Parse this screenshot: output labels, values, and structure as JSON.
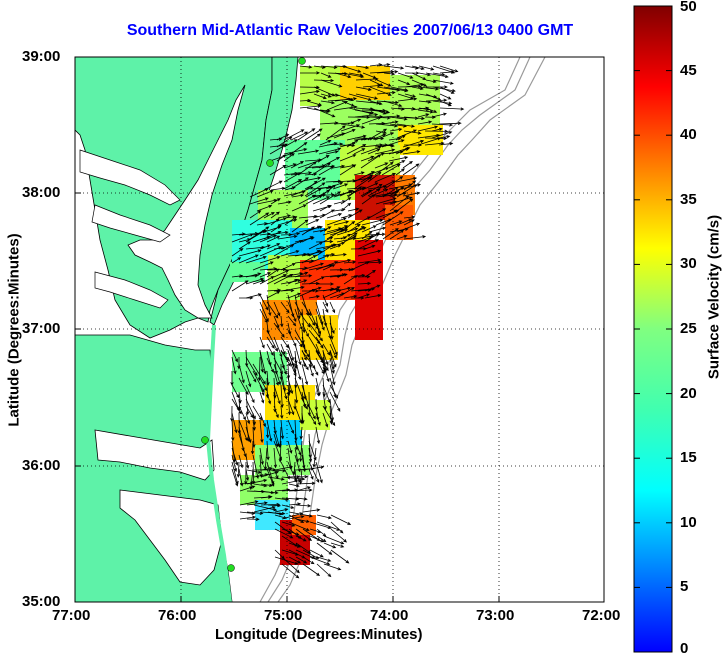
{
  "title": "Southern Mid-Atlantic Raw Velocities 2007/06/13 0400 GMT",
  "xlabel": "Longitude (Degrees:Minutes)",
  "ylabel": "Latitude (Degrees:Minutes)",
  "colorbar": {
    "label": "Surface Velocity (cm/s)",
    "min": 0,
    "max": 50,
    "ticks": [
      "0",
      "5",
      "10",
      "15",
      "20",
      "25",
      "30",
      "35",
      "40",
      "45",
      "50"
    ]
  },
  "x_ticks": [
    "77:00",
    "76:00",
    "75:00",
    "74:00",
    "73:00",
    "72:00"
  ],
  "y_ticks": [
    "39:00",
    "38:00",
    "37:00",
    "36:00",
    "35:00"
  ],
  "map": {
    "land_color": "#5ef2a8",
    "water_color": "#ffffff",
    "station_color": "#22dd22",
    "bathymetry_color": "#9a9a9a"
  }
}
